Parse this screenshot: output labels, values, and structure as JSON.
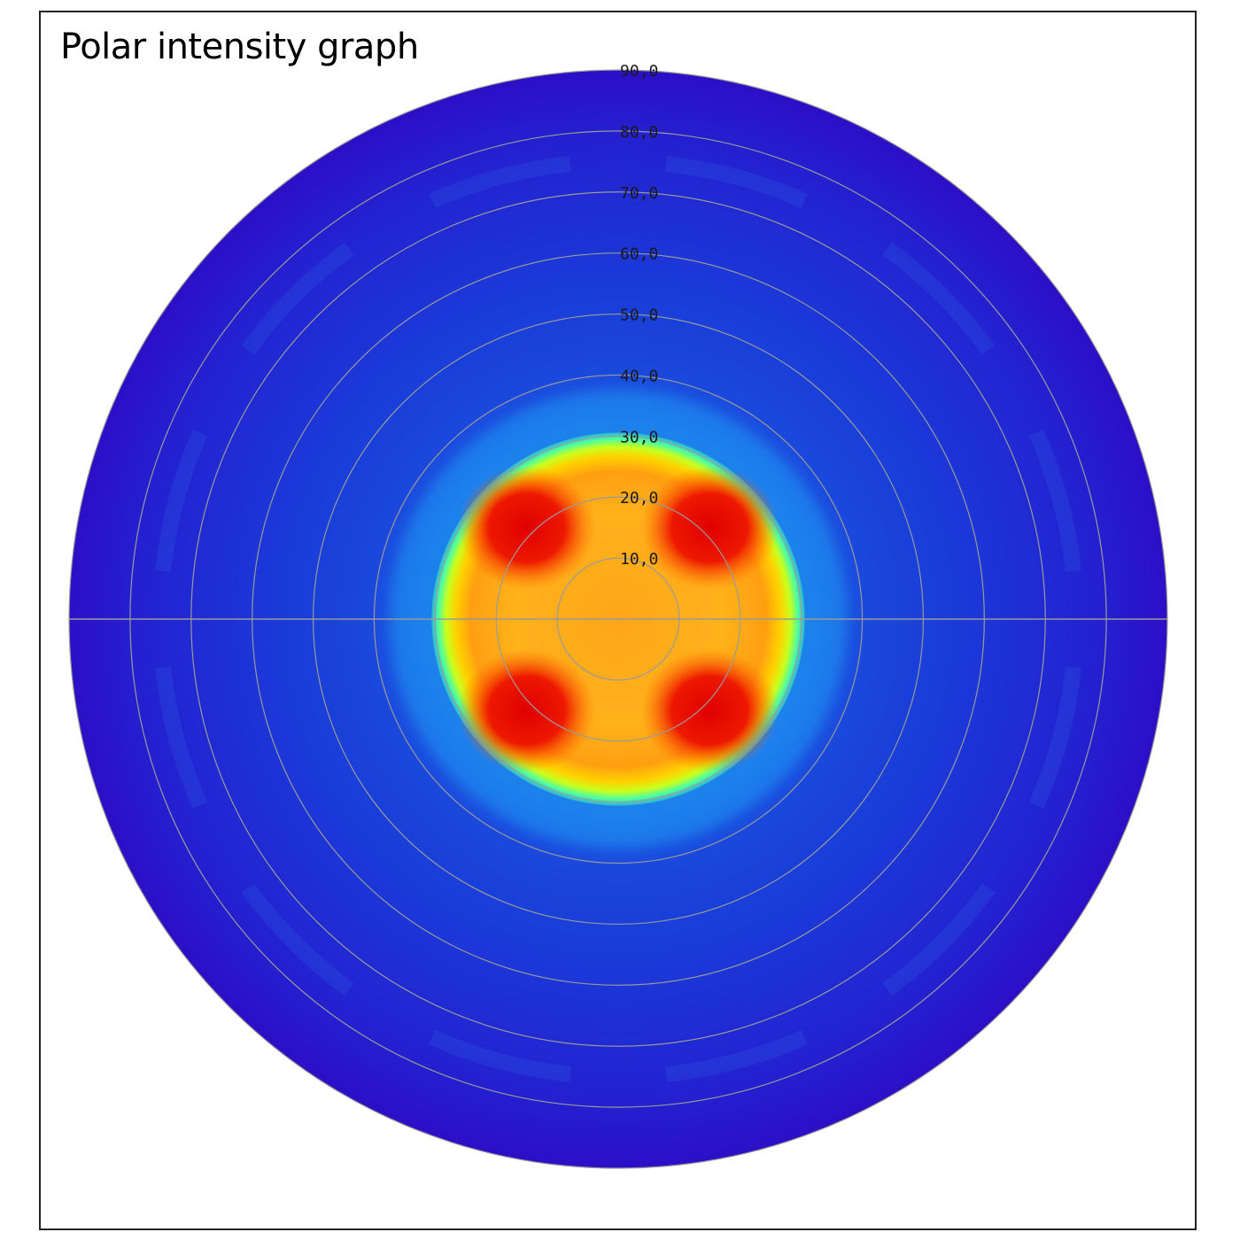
{
  "chart_data": {
    "type": "heatmap",
    "title": "Polar intensity graph",
    "coordinate_system": "polar",
    "radial_axis": {
      "min": 0,
      "max": 90,
      "tick_values": [
        10,
        20,
        30,
        40,
        50,
        60,
        70,
        80,
        90
      ],
      "tick_labels": [
        "10,0",
        "20,0",
        "30,0",
        "40,0",
        "50,0",
        "60,0",
        "70,0",
        "80,0",
        "90,0"
      ]
    },
    "horizontal_reference_line": true,
    "grid": true,
    "colormap": [
      "#2a10c8",
      "#1a3ae0",
      "#1f8ff0",
      "#19e0c8",
      "#aaff2a",
      "#f5f50a",
      "#ffb000",
      "#ff6a00",
      "#e00000"
    ],
    "intensity_profile": {
      "core_radius": 30,
      "falloff_to_background": 40,
      "peak_lobes_azimuth_deg": [
        45,
        135,
        225,
        315
      ],
      "peak_lobe_radius": 20
    },
    "colors": {
      "background_field": "#2d0fc6",
      "grid_line": "#9a9a9a",
      "hot": "#e00000",
      "warm": "#ff9a00",
      "edge": "#aaff2a"
    }
  }
}
